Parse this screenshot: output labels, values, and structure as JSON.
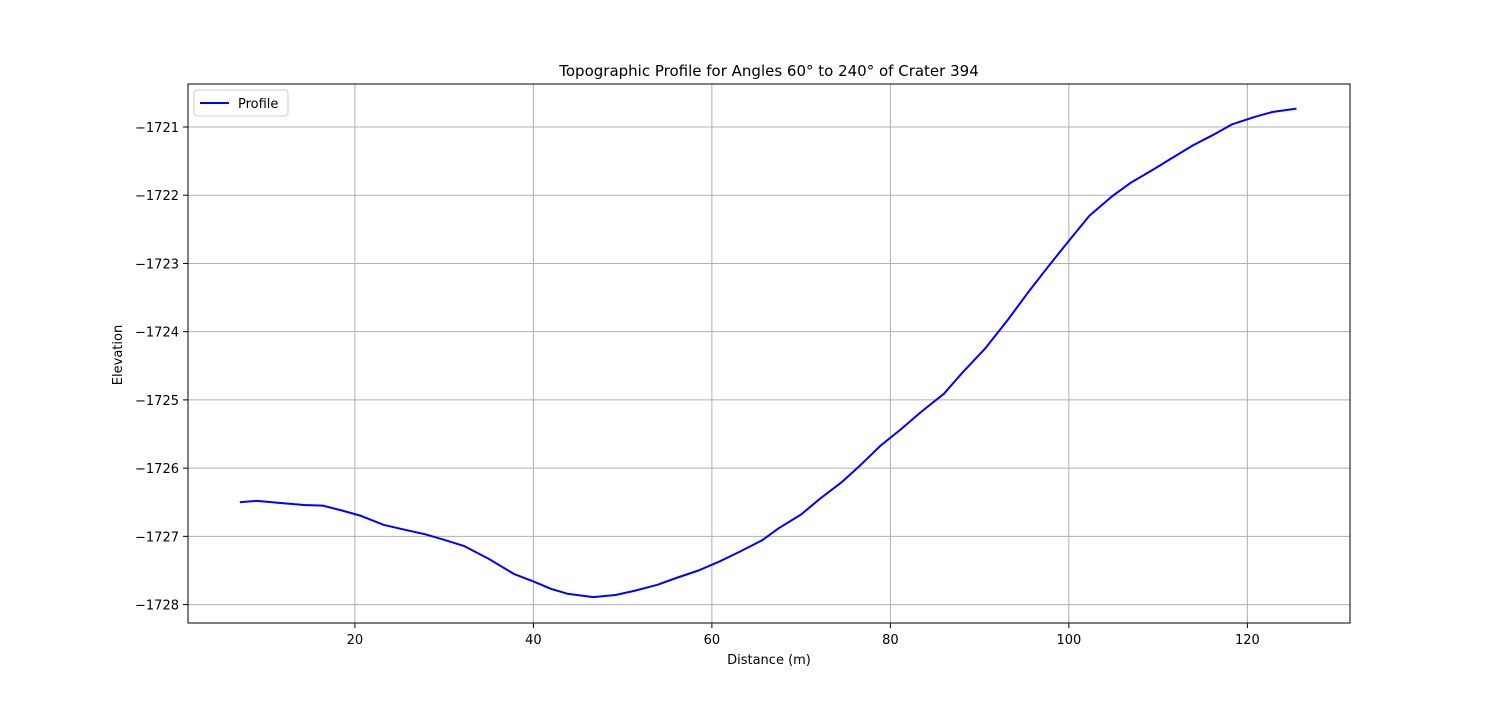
{
  "chart_data": {
    "type": "line",
    "title": "Topographic Profile for Angles 60° to 240° of Crater 394",
    "xlabel": "Distance (m)",
    "ylabel": "Elevation",
    "xlim": [
      1.3,
      131.5
    ],
    "ylim": [
      -1728.27,
      -1720.37
    ],
    "xticks": [
      20,
      40,
      60,
      80,
      100,
      120
    ],
    "yticks": [
      -1728,
      -1727,
      -1726,
      -1725,
      -1724,
      -1723,
      -1722,
      -1721
    ],
    "grid": true,
    "legend": {
      "position": "top-left",
      "entries": [
        "Profile"
      ]
    },
    "series": [
      {
        "name": "Profile",
        "color": "#0000ff",
        "x": [
          7.1,
          9.0,
          11.5,
          14.3,
          16.4,
          18.5,
          20.7,
          23.2,
          25.8,
          27.9,
          30.0,
          32.2,
          35.0,
          37.8,
          40.0,
          42.0,
          43.8,
          46.7,
          49.2,
          51.3,
          53.9,
          56.0,
          58.5,
          61.0,
          63.2,
          65.6,
          67.5,
          70.0,
          72.1,
          74.6,
          76.7,
          78.9,
          81.1,
          83.5,
          86.0,
          88.0,
          90.6,
          93.2,
          95.4,
          97.6,
          99.8,
          102.3,
          104.8,
          106.9,
          109.5,
          111.5,
          113.9,
          116.1,
          118.3,
          120.9,
          122.8,
          125.5
        ],
        "y": [
          -1726.5,
          -1726.48,
          -1726.51,
          -1726.54,
          -1726.55,
          -1726.62,
          -1726.7,
          -1726.83,
          -1726.91,
          -1726.97,
          -1727.05,
          -1727.14,
          -1727.33,
          -1727.55,
          -1727.66,
          -1727.77,
          -1727.84,
          -1727.89,
          -1727.86,
          -1727.8,
          -1727.71,
          -1727.61,
          -1727.5,
          -1727.36,
          -1727.22,
          -1727.06,
          -1726.88,
          -1726.68,
          -1726.45,
          -1726.2,
          -1725.95,
          -1725.67,
          -1725.44,
          -1725.17,
          -1724.91,
          -1724.61,
          -1724.25,
          -1723.82,
          -1723.43,
          -1723.06,
          -1722.7,
          -1722.3,
          -1722.02,
          -1721.82,
          -1721.62,
          -1721.46,
          -1721.27,
          -1721.12,
          -1720.96,
          -1720.85,
          -1720.78,
          -1720.73
        ]
      }
    ]
  }
}
